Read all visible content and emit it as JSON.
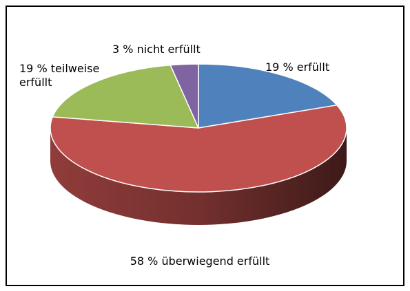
{
  "chart_data": {
    "type": "pie3d",
    "categories": [
      "erfüllt",
      "überwiegend erfüllt",
      "teilweise erfüllt",
      "nicht erfüllt"
    ],
    "values": [
      19,
      58,
      19,
      3
    ],
    "value_labels": [
      "19 %",
      "58 %",
      "19 %",
      "3 %"
    ],
    "colors": [
      "#4f81bd",
      "#c0504d",
      "#9bbb59",
      "#8064a2"
    ]
  }
}
